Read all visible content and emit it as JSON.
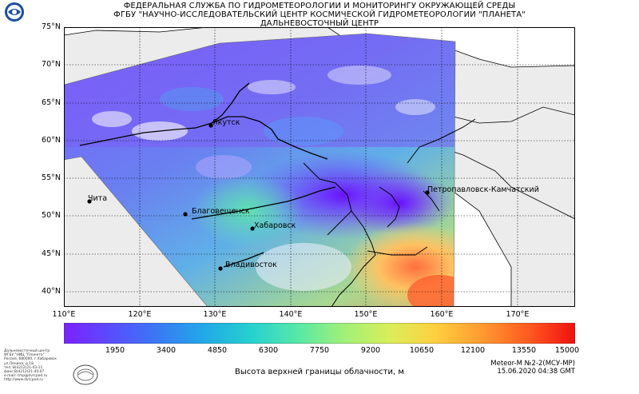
{
  "header": {
    "line1": "ФЕДЕРАЛЬНАЯ СЛУЖБА ПО ГИДРОМЕТЕОРОЛОГИИ И МОНИТОРИНГУ ОКРУЖАЮЩЕЙ СРЕДЫ",
    "line2": "ФГБУ \"НАУЧНО-ИССЛЕДОВАТЕЛЬСКИЙ ЦЕНТР КОСМИЧЕСКОЙ ГИДРОМЕТЕОРОЛОГИИ \"ПЛАНЕТА\"",
    "line3": "ДАЛЬНЕВОСТОЧНЫЙ ЦЕНТР"
  },
  "map": {
    "lat_labels": [
      "75°N",
      "70°N",
      "65°N",
      "60°N",
      "55°N",
      "50°N",
      "45°N",
      "40°N"
    ],
    "lon_labels": [
      "110°E",
      "120°E",
      "130°E",
      "140°E",
      "150°E",
      "160°E",
      "170°E"
    ],
    "cities": [
      {
        "name": "Якутск"
      },
      {
        "name": "Чита"
      },
      {
        "name": "Благовещенск"
      },
      {
        "name": "Хабаровск"
      },
      {
        "name": "Владивосток"
      },
      {
        "name": "Петропавловск-Камчатский"
      }
    ],
    "colors": {
      "land": "#ececec",
      "sea": "#ffffff",
      "coast": "#000000",
      "grid": "#000000"
    }
  },
  "colorbar": {
    "ticks": [
      "1950",
      "3400",
      "4850",
      "6300",
      "7750",
      "9200",
      "10650",
      "12100",
      "13550",
      "15000"
    ],
    "title": "Высота верхней границы облачности, м",
    "colors": [
      "#7a22ff",
      "#5a4cff",
      "#3a78f5",
      "#22a8e8",
      "#25d0d0",
      "#55e8a8",
      "#9ef07a",
      "#d8ee5a",
      "#ffd040",
      "#ff9a30",
      "#ff5a20",
      "#f01010"
    ]
  },
  "satellite": {
    "name": "Meteor-M №2-2(МСУ-МР)",
    "datetime": "15.06.2020 04:38 GMT"
  },
  "contact": {
    "lines": [
      "Дальневосточный центр",
      "ФГБУ \"НИЦ \"Планета\"",
      "Россия, 680000, г.Хабаровск",
      "ул.Ленина, д.18",
      "тел.:8(4212)21-43-11",
      "факс:8(4212)21-40-07",
      "e-mail: cmp@dvrcpod.ru",
      "http://www.dvrcpod.ru"
    ]
  }
}
